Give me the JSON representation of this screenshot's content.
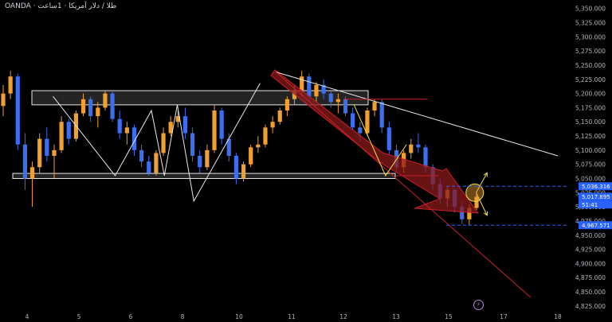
{
  "header": {
    "symbol_source": "OANDA",
    "title_rtl": "طلا / دلار آمریکا · 1ساعت"
  },
  "badges": {
    "flash": "⚡"
  },
  "colors": {
    "up": "#f0a030",
    "down": "#3a6ff0",
    "zone_fill": "#2a2a2a",
    "zone_border": "#e8e8e8",
    "red_arrow": "#8b1a1a",
    "red_line": "#c8202a",
    "white_line": "#e8e8e8",
    "yellow": "#f5e04a",
    "price_tag": "#2962ff",
    "dashed": "#2962ff"
  },
  "chart_data": {
    "type": "candlestick",
    "symbol": "OANDA",
    "x_ticks": [
      "4",
      "5",
      "6",
      "8",
      "10",
      "11",
      "12",
      "13",
      "15",
      "17",
      "18"
    ],
    "y_ticks": [
      5350,
      5325,
      5300,
      5275,
      5250,
      5225,
      5200,
      5175,
      5150,
      5125,
      5100,
      5075,
      5050,
      5025,
      5000,
      4975,
      4950,
      4925,
      4900,
      4875,
      4850,
      4825
    ],
    "y_range": [
      4815,
      5365
    ],
    "grid": false,
    "price_labels": [
      {
        "text": "5,036.316",
        "value": 5036.316,
        "color": "#2962ff"
      },
      {
        "text": "5,017.895",
        "value": 5017.895,
        "color": "#2962ff"
      },
      {
        "text": "51:41",
        "value": 5004,
        "color": "#2962ff"
      },
      {
        "text": "4,967.571",
        "value": 4967.571,
        "color": "#2962ff"
      }
    ],
    "levels": [
      {
        "value": 5036.316,
        "style": "dashed"
      },
      {
        "value": 4967.571,
        "style": "dashed"
      }
    ],
    "zones": [
      {
        "name": "resistance-zone",
        "from_x": "4",
        "to_x": "12",
        "top": 5205,
        "bottom": 5180
      },
      {
        "name": "support-zone",
        "from_x": "4",
        "to_x": "13",
        "top": 5059,
        "bottom": 5050
      }
    ],
    "series": [
      {
        "candles": [
          [
            5178,
            5215,
            5160,
            5200
          ],
          [
            5200,
            5240,
            5190,
            5230
          ],
          [
            5230,
            5235,
            5100,
            5110
          ],
          [
            5110,
            5130,
            5030,
            5050
          ],
          [
            5050,
            5080,
            5000,
            5070
          ],
          [
            5070,
            5130,
            5060,
            5120
          ],
          [
            5120,
            5140,
            5080,
            5090
          ],
          [
            5090,
            5110,
            5050,
            5100
          ],
          [
            5100,
            5160,
            5095,
            5150
          ],
          [
            5150,
            5155,
            5110,
            5120
          ],
          [
            5120,
            5170,
            5115,
            5165
          ],
          [
            5165,
            5200,
            5160,
            5190
          ],
          [
            5190,
            5195,
            5150,
            5160
          ],
          [
            5160,
            5185,
            5140,
            5175
          ],
          [
            5175,
            5205,
            5170,
            5200
          ],
          [
            5200,
            5205,
            5150,
            5155
          ],
          [
            5155,
            5170,
            5120,
            5130
          ],
          [
            5130,
            5150,
            5110,
            5140
          ],
          [
            5140,
            5145,
            5090,
            5100
          ],
          [
            5100,
            5110,
            5070,
            5080
          ],
          [
            5080,
            5090,
            5055,
            5060
          ],
          [
            5060,
            5100,
            5055,
            5095
          ],
          [
            5095,
            5140,
            5090,
            5130
          ],
          [
            5130,
            5160,
            5125,
            5150
          ],
          [
            5150,
            5170,
            5140,
            5160
          ],
          [
            5160,
            5175,
            5120,
            5130
          ],
          [
            5130,
            5140,
            5080,
            5090
          ],
          [
            5090,
            5100,
            5060,
            5070
          ],
          [
            5070,
            5110,
            5065,
            5100
          ],
          [
            5100,
            5180,
            5095,
            5170
          ],
          [
            5170,
            5175,
            5110,
            5120
          ],
          [
            5120,
            5130,
            5080,
            5090
          ],
          [
            5090,
            5095,
            5040,
            5050
          ],
          [
            5050,
            5080,
            5045,
            5075
          ],
          [
            5075,
            5110,
            5070,
            5105
          ],
          [
            5105,
            5125,
            5095,
            5110
          ],
          [
            5110,
            5145,
            5105,
            5140
          ],
          [
            5140,
            5160,
            5130,
            5150
          ],
          [
            5150,
            5175,
            5145,
            5170
          ],
          [
            5170,
            5195,
            5160,
            5190
          ],
          [
            5190,
            5215,
            5180,
            5205
          ],
          [
            5205,
            5240,
            5195,
            5230
          ],
          [
            5230,
            5235,
            5185,
            5195
          ],
          [
            5195,
            5220,
            5185,
            5215
          ],
          [
            5215,
            5225,
            5190,
            5200
          ],
          [
            5200,
            5205,
            5175,
            5185
          ],
          [
            5185,
            5200,
            5165,
            5190
          ],
          [
            5190,
            5195,
            5160,
            5165
          ],
          [
            5165,
            5175,
            5135,
            5140
          ],
          [
            5140,
            5150,
            5115,
            5130
          ],
          [
            5130,
            5175,
            5125,
            5170
          ],
          [
            5170,
            5190,
            5160,
            5185
          ],
          [
            5185,
            5190,
            5130,
            5140
          ],
          [
            5140,
            5150,
            5090,
            5100
          ],
          [
            5100,
            5110,
            5060,
            5070
          ],
          [
            5070,
            5100,
            5060,
            5095
          ],
          [
            5095,
            5120,
            5085,
            5110
          ],
          [
            5110,
            5130,
            5095,
            5105
          ],
          [
            5105,
            5110,
            5060,
            5070
          ],
          [
            5070,
            5075,
            5030,
            5040
          ],
          [
            5040,
            5050,
            5005,
            5015
          ],
          [
            5015,
            5035,
            5000,
            5030
          ],
          [
            5030,
            5032,
            4990,
            5000
          ],
          [
            5000,
            5010,
            4970,
            4978
          ],
          [
            4978,
            5005,
            4968,
            4998
          ],
          [
            4998,
            5025,
            4995,
            5018
          ]
        ]
      }
    ],
    "annotations": [
      {
        "name": "downtrend-line",
        "kind": "line",
        "points": [
          [
            "10.7",
            5238
          ],
          [
            "18",
            5090
          ]
        ]
      },
      {
        "name": "channel-line",
        "kind": "line",
        "points": [
          [
            "10.7",
            5238
          ],
          [
            "17.5",
            4840
          ]
        ]
      },
      {
        "name": "resistance-extension",
        "kind": "line",
        "points": [
          [
            "12",
            5190
          ],
          [
            "14.2",
            5190
          ]
        ]
      },
      {
        "name": "support-extension",
        "kind": "line",
        "points": [
          [
            "13",
            5055
          ],
          [
            "14.6",
            5055
          ]
        ]
      },
      {
        "name": "zigzag-pattern",
        "kind": "polyline",
        "points": [
          [
            "4.5",
            5195
          ],
          [
            "5.7",
            5055
          ],
          [
            "6.8",
            5170
          ],
          [
            "7.3",
            5055
          ],
          [
            "7.8",
            5180
          ],
          [
            "8.4",
            5010
          ],
          [
            "10.4",
            5218
          ]
        ]
      },
      {
        "name": "zigzag-pattern-2",
        "kind": "polyline",
        "points": [
          [
            "12.2",
            5180
          ],
          [
            "12.8",
            5055
          ],
          [
            "13.4",
            5110
          ]
        ]
      },
      {
        "name": "projection-up",
        "kind": "arrow",
        "points": [
          [
            "16.0",
            5025
          ],
          [
            "16.4",
            5060
          ]
        ]
      },
      {
        "name": "projection-down",
        "kind": "arrow",
        "points": [
          [
            "16.0",
            5025
          ],
          [
            "16.4",
            4985
          ]
        ]
      },
      {
        "name": "pivot-circle",
        "kind": "circle",
        "center": [
          "15.95",
          5025
        ]
      }
    ]
  }
}
